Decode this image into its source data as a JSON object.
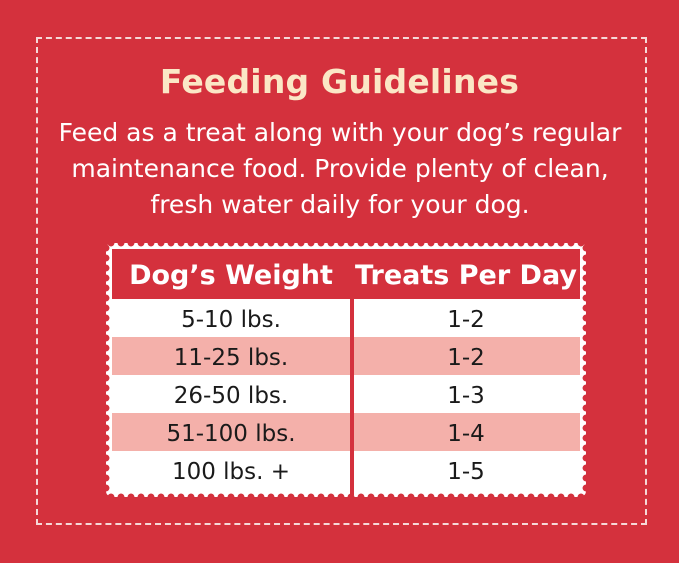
{
  "title": "Feeding Guidelines",
  "description": {
    "line1": "Feed as a treat along with your dog’s regular",
    "line2": "maintenance food. Provide plenty of clean,",
    "line3": "fresh water daily for your dog."
  },
  "table": {
    "headers": [
      "Dog’s Weight",
      "Treats Per Day"
    ],
    "rows": [
      [
        "5-10 lbs.",
        "1-2"
      ],
      [
        "11-25 lbs.",
        "1-2"
      ],
      [
        "26-50 lbs.",
        "1-3"
      ],
      [
        "51-100 lbs.",
        "1-4"
      ],
      [
        "100 lbs. +",
        "1-5"
      ]
    ]
  },
  "colors": {
    "background": "#d4313d",
    "title": "#fbe7c6",
    "row_alt": "#f4b0aa"
  }
}
